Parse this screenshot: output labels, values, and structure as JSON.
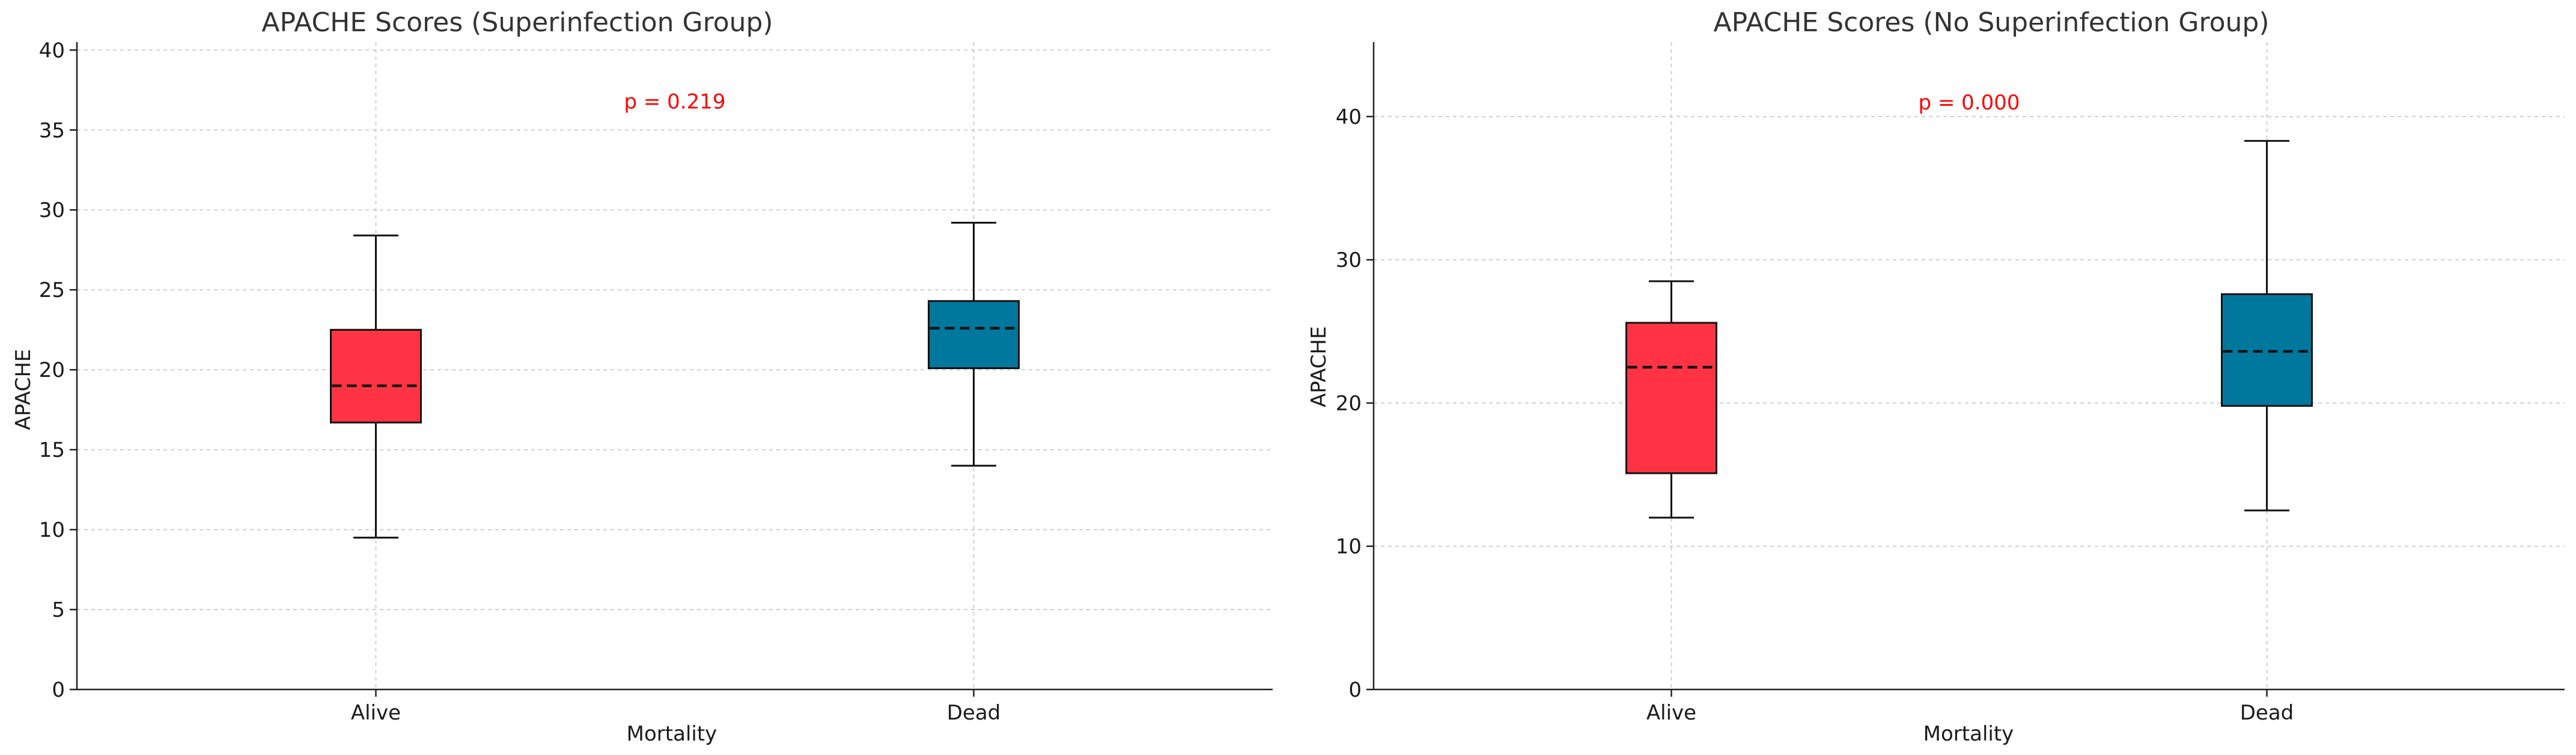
{
  "chart_data": [
    {
      "type": "box",
      "title": "APACHE Scores (Superinfection Group)",
      "xlabel": "Mortality",
      "ylabel": "APACHE",
      "categories": [
        "Alive",
        "Dead"
      ],
      "ylim": [
        0,
        40.5
      ],
      "yticks": [
        0,
        5,
        10,
        15,
        20,
        25,
        30,
        35,
        40
      ],
      "grid": true,
      "boxes": [
        {
          "label": "Alive",
          "whisker_low": 9.5,
          "q1": 16.7,
          "median": 19.0,
          "q3": 22.5,
          "whisker_high": 28.4,
          "color": "#ff3344"
        },
        {
          "label": "Dead",
          "whisker_low": 14.0,
          "q1": 20.1,
          "median": 22.6,
          "q3": 24.3,
          "whisker_high": 29.2,
          "color": "#00789e"
        }
      ],
      "annotation": {
        "text": "p = 0.219",
        "x_position": 0.5,
        "y_value": 36.8,
        "color": "#ff0000"
      }
    },
    {
      "type": "box",
      "title": "APACHE Scores (No Superinfection Group)",
      "xlabel": "Mortality",
      "ylabel": "APACHE",
      "categories": [
        "Alive",
        "Dead"
      ],
      "ylim": [
        0,
        45.2
      ],
      "yticks": [
        0,
        10,
        20,
        30,
        40
      ],
      "grid": true,
      "boxes": [
        {
          "label": "Alive",
          "whisker_low": 12.0,
          "q1": 15.1,
          "median": 22.5,
          "q3": 25.6,
          "whisker_high": 28.5,
          "color": "#ff3344"
        },
        {
          "label": "Dead",
          "whisker_low": 12.5,
          "q1": 19.8,
          "median": 23.6,
          "q3": 27.6,
          "whisker_high": 38.3,
          "color": "#00789e"
        }
      ],
      "annotation": {
        "text": "p = 0.000",
        "x_position": 0.5,
        "y_value": 41.0,
        "color": "#ff0000"
      }
    }
  ]
}
